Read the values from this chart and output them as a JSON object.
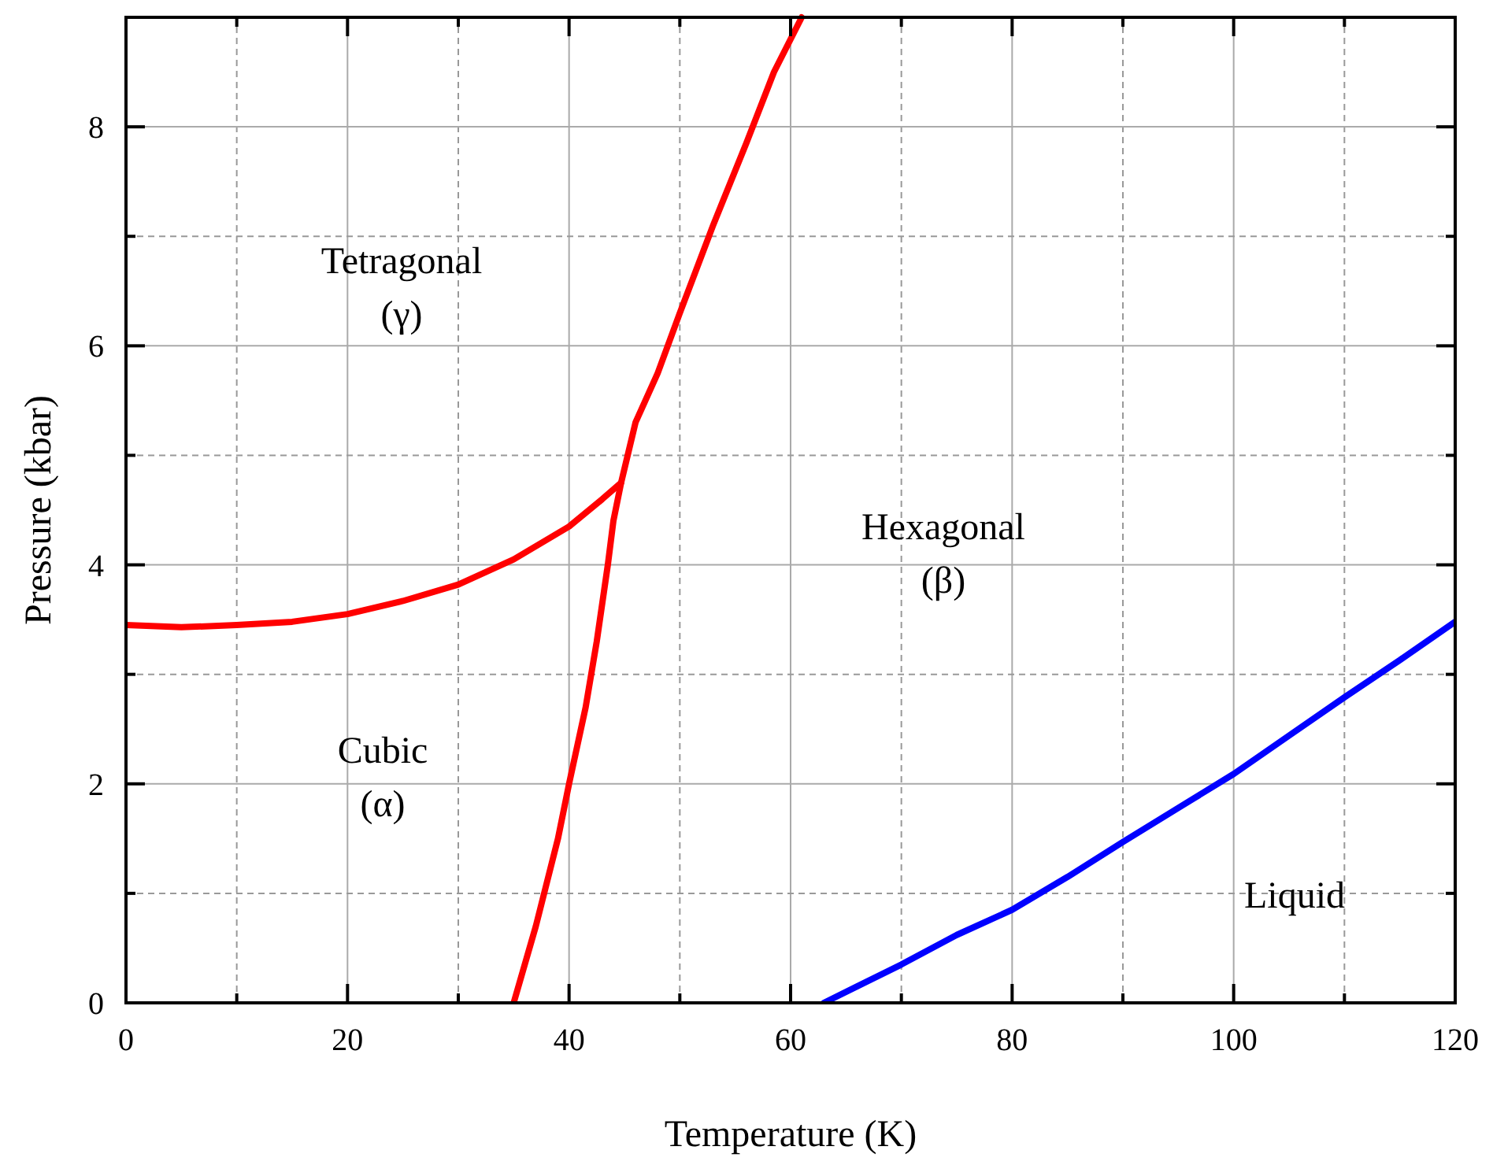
{
  "chart_data": {
    "type": "line",
    "xlabel": "Temperature (K)",
    "ylabel": "Pressure (kbar)",
    "xlim": [
      0,
      120
    ],
    "ylim": [
      0,
      9
    ],
    "xticks": [
      0,
      {
        "value": 10,
        "label": null
      },
      20,
      {
        "value": 30,
        "label": null
      },
      40,
      {
        "value": 50,
        "label": null
      },
      60,
      {
        "value": 70,
        "label": null
      },
      80,
      {
        "value": 90,
        "label": null
      },
      100,
      {
        "value": 110,
        "label": null
      },
      120
    ],
    "yticks": [
      0,
      {
        "value": 1,
        "label": null
      },
      2,
      {
        "value": 3,
        "label": null
      },
      4,
      {
        "value": 5,
        "label": null
      },
      6,
      {
        "value": 7,
        "label": null
      },
      8
    ],
    "grid": true,
    "marker": "none",
    "line_style": "solid",
    "series": [
      {
        "color": "#ff0000",
        "x": [
          0,
          5,
          10,
          15,
          20,
          25,
          30,
          35,
          40,
          43,
          44.7
        ],
        "values": [
          3.45,
          3.43,
          3.45,
          3.48,
          3.55,
          3.67,
          3.82,
          4.05,
          4.35,
          4.6,
          4.75
        ]
      },
      {
        "color": "#ff0000",
        "x": [
          35,
          37,
          39,
          40,
          41.5,
          42.5,
          43.5,
          44,
          44.7,
          46,
          48,
          50,
          53,
          56,
          58.5,
          61
        ],
        "values": [
          0,
          0.7,
          1.5,
          2.0,
          2.7,
          3.3,
          4.0,
          4.4,
          4.75,
          5.3,
          5.75,
          6.3,
          7.1,
          7.85,
          8.5,
          9.0
        ]
      },
      {
        "color": "#0000ff",
        "x": [
          63,
          66,
          70,
          75,
          80,
          85,
          90,
          95,
          100,
          105,
          110,
          115,
          120
        ],
        "values": [
          0,
          0.15,
          0.35,
          0.62,
          0.85,
          1.15,
          1.47,
          1.78,
          2.09,
          2.44,
          2.79,
          3.13,
          3.48
        ]
      }
    ],
    "annotations": [
      "Tetragonal\n(γ)",
      "Cubic\n(α)",
      "Hexagonal\n(β)",
      "Liquid"
    ]
  }
}
